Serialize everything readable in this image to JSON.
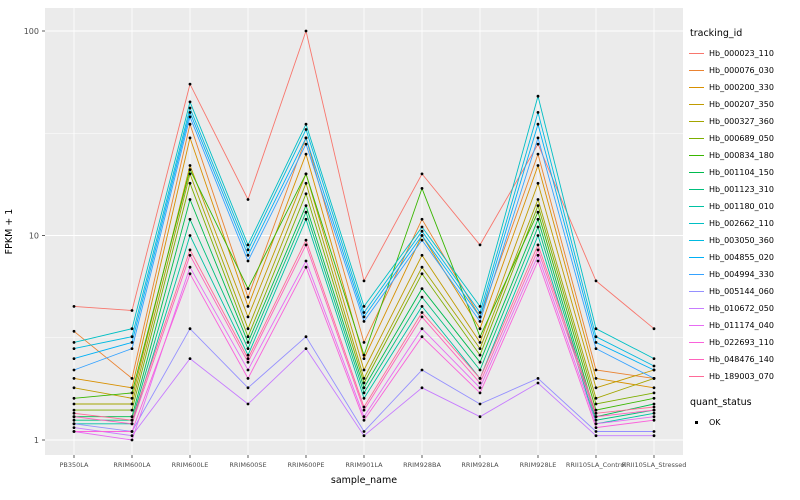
{
  "panel": {
    "bg": "#EBEBEB",
    "grid": "#FFFFFF",
    "tick_color": "#333333",
    "tick_label_color": "#4D4D4D",
    "point_color": "#000000"
  },
  "chart_data": {
    "type": "line",
    "title": "",
    "xlabel": "sample_name",
    "ylabel": "FPKM + 1",
    "y_scale": "log10",
    "y_ticks": [
      1,
      10,
      100
    ],
    "y_tick_labels": [
      "1",
      "10",
      "100"
    ],
    "y_minor": [
      3.1623,
      31.623
    ],
    "ylim": [
      0.85,
      130
    ],
    "legend_title": "tracking_id",
    "legend2_title": "quant_status",
    "legend2_items": [
      "OK"
    ],
    "categories": [
      "PB350LA",
      "RRIM600LA",
      "RRIM600LE",
      "RRIM600SE",
      "RRIM600PE",
      "RRIM901LA",
      "RRIM928BA",
      "RRIM928LA",
      "RRIM928LE",
      "RRII105LA_Control",
      "RRII105LA_Stressed"
    ],
    "series": [
      {
        "name": "Hb_000023_110",
        "color": "#F8766D",
        "values": [
          4.5,
          4.3,
          55,
          15,
          100,
          6.0,
          20,
          9.0,
          28,
          6.0,
          3.5
        ]
      },
      {
        "name": "Hb_000076_030",
        "color": "#EA8331",
        "values": [
          3.4,
          2.0,
          35,
          5.0,
          30,
          3.0,
          12,
          4.0,
          25,
          2.2,
          2.0
        ]
      },
      {
        "name": "Hb_000200_330",
        "color": "#D89000",
        "values": [
          2.0,
          1.8,
          30,
          4.5,
          25,
          2.5,
          10,
          3.5,
          22,
          2.0,
          1.8
        ]
      },
      {
        "name": "Hb_000207_350",
        "color": "#C09B00",
        "values": [
          1.8,
          1.6,
          22,
          4.0,
          20,
          2.2,
          8.0,
          3.0,
          18,
          1.8,
          2.2
        ]
      },
      {
        "name": "Hb_000327_360",
        "color": "#A3A500",
        "values": [
          1.5,
          1.5,
          20,
          3.5,
          18,
          2.0,
          7.0,
          2.8,
          15,
          1.6,
          2.0
        ]
      },
      {
        "name": "Hb_000689_050",
        "color": "#7CAE00",
        "values": [
          1.4,
          1.4,
          18,
          3.2,
          16,
          1.9,
          6.5,
          2.6,
          14,
          1.5,
          1.7
        ]
      },
      {
        "name": "Hb_000834_180",
        "color": "#39B600",
        "values": [
          1.6,
          1.7,
          21,
          5.5,
          20,
          2.6,
          17,
          3.2,
          13,
          1.4,
          1.6
        ]
      },
      {
        "name": "Hb_001104_150",
        "color": "#00BB4E",
        "values": [
          1.3,
          1.3,
          15,
          3.0,
          14,
          1.8,
          5.5,
          2.4,
          12,
          1.3,
          1.5
        ]
      },
      {
        "name": "Hb_001123_310",
        "color": "#00BF7D",
        "values": [
          1.25,
          1.25,
          12,
          2.8,
          13,
          1.7,
          5.0,
          2.2,
          11,
          1.25,
          1.4
        ]
      },
      {
        "name": "Hb_001180_010",
        "color": "#00C1A3",
        "values": [
          1.2,
          1.2,
          10,
          2.6,
          12,
          1.6,
          4.5,
          2.0,
          10,
          1.2,
          1.35
        ]
      },
      {
        "name": "Hb_002662_110",
        "color": "#00BFC4",
        "values": [
          3.0,
          3.5,
          45,
          9.0,
          35,
          4.5,
          11,
          4.5,
          48,
          3.5,
          2.5
        ]
      },
      {
        "name": "Hb_003050_360",
        "color": "#00BAE0",
        "values": [
          2.8,
          3.2,
          42,
          8.5,
          33,
          4.2,
          10.5,
          4.2,
          40,
          3.2,
          2.3
        ]
      },
      {
        "name": "Hb_004855_020",
        "color": "#00B0F6",
        "values": [
          2.5,
          3.0,
          40,
          8.0,
          30,
          4.0,
          10,
          4.0,
          35,
          3.0,
          2.2
        ]
      },
      {
        "name": "Hb_004994_330",
        "color": "#35A2FF",
        "values": [
          2.2,
          2.8,
          38,
          7.5,
          28,
          3.8,
          9.5,
          3.8,
          30,
          2.8,
          2.0
        ]
      },
      {
        "name": "Hb_005144_060",
        "color": "#9590FF",
        "values": [
          1.2,
          1.1,
          3.5,
          1.8,
          3.2,
          1.1,
          2.2,
          1.5,
          2.0,
          1.1,
          1.1
        ]
      },
      {
        "name": "Hb_010672_050",
        "color": "#C77CFF",
        "values": [
          1.15,
          1.05,
          2.5,
          1.5,
          2.8,
          1.05,
          1.8,
          1.3,
          1.9,
          1.05,
          1.05
        ]
      },
      {
        "name": "Hb_011174_040",
        "color": "#E76BF3",
        "values": [
          1.1,
          1.0,
          7.0,
          2.2,
          7.5,
          1.3,
          3.5,
          1.8,
          8.0,
          1.2,
          1.3
        ]
      },
      {
        "name": "Hb_022693_110",
        "color": "#FA62DB",
        "values": [
          1.1,
          1.1,
          6.5,
          2.0,
          7.0,
          1.25,
          3.2,
          1.7,
          7.5,
          1.15,
          1.25
        ]
      },
      {
        "name": "Hb_048476_140",
        "color": "#FF62BC",
        "values": [
          1.3,
          1.2,
          8.0,
          2.4,
          9.0,
          1.4,
          4.0,
          1.9,
          8.5,
          1.3,
          1.4
        ]
      },
      {
        "name": "Hb_189003_070",
        "color": "#FF6A98",
        "values": [
          1.35,
          1.25,
          8.5,
          2.5,
          9.5,
          1.45,
          4.2,
          2.0,
          9.0,
          1.35,
          1.45
        ]
      }
    ]
  }
}
